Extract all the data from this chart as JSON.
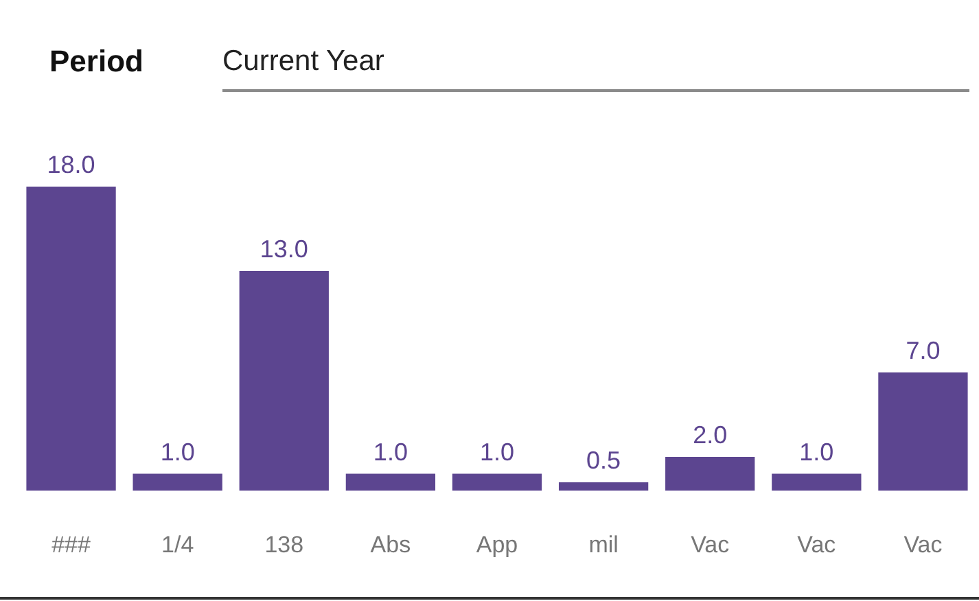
{
  "chart_data": {
    "type": "bar",
    "title": "Period",
    "subtitle": "Current Year",
    "categories": [
      "###",
      "1/4",
      "138",
      "Abs",
      "App",
      "mil",
      "Vac",
      "Vac",
      "Vac"
    ],
    "values": [
      18.0,
      1.0,
      13.0,
      1.0,
      1.0,
      0.5,
      2.0,
      1.0,
      7.0
    ],
    "value_labels": [
      "18.0",
      "1.0",
      "13.0",
      "1.0",
      "1.0",
      "0.5",
      "2.0",
      "1.0",
      "7.0"
    ],
    "color": "#5c4590",
    "grid": false,
    "legend": false
  }
}
